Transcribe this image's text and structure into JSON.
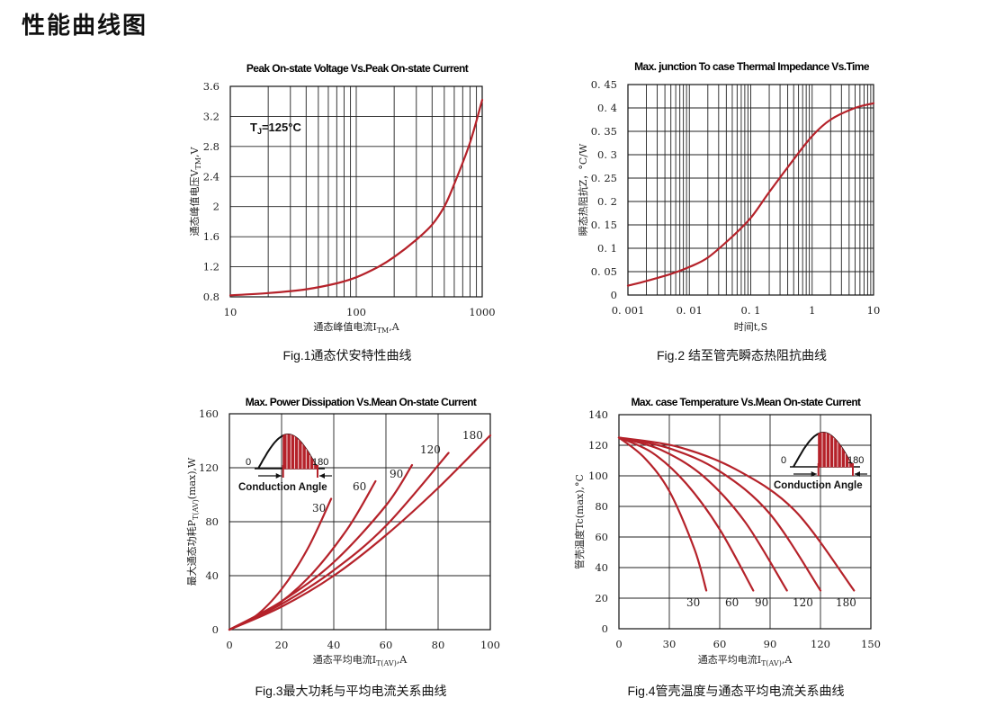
{
  "page": {
    "title": "性能曲线图"
  },
  "colors": {
    "curve": "#b5222a",
    "grid": "#222222",
    "background": "#ffffff"
  },
  "chart_data": [
    {
      "type": "line",
      "title": "Peak On-state Voltage Vs.Peak On-state Current",
      "xlabel": "通态峰值电流I",
      "xlabel_sub": "TM",
      "xlabel_unit": ",A",
      "ylabel": "通态峰值电压V",
      "ylabel_sub": "TM",
      "ylabel_unit": ",V",
      "x_scale": "log",
      "xlim": [
        10,
        1000
      ],
      "ylim": [
        0.8,
        3.6
      ],
      "x_ticks": [
        10,
        100,
        1000
      ],
      "x_tick_labels": [
        "10",
        "100",
        "1000"
      ],
      "y_ticks": [
        0.8,
        1.2,
        1.6,
        2,
        2.4,
        2.8,
        3.2,
        3.6
      ],
      "y_tick_labels": [
        "0.8",
        "1.2",
        "1.6",
        "2",
        "2.4",
        "2.8",
        "3.2",
        "3.6"
      ],
      "grid": true,
      "annotation": "TJ=125°C",
      "series": [
        {
          "x": [
            10,
            20,
            40,
            70,
            100,
            150,
            200,
            300,
            400,
            500,
            600,
            800,
            1000
          ],
          "y": [
            0.82,
            0.85,
            0.9,
            0.98,
            1.06,
            1.2,
            1.33,
            1.56,
            1.76,
            2.0,
            2.3,
            2.85,
            3.42
          ]
        }
      ],
      "caption": "Fig.1通态伏安特性曲线"
    },
    {
      "type": "line",
      "title": "Max. junction To case Thermal Impedance Vs.Time",
      "xlabel": "时间t,S",
      "ylabel": "瞬态热阻抗Z，°C/W",
      "x_scale": "log",
      "xlim": [
        0.001,
        10
      ],
      "ylim": [
        0,
        0.45
      ],
      "x_ticks": [
        0.001,
        0.01,
        0.1,
        1,
        10
      ],
      "x_tick_labels": [
        "0. 001",
        "0. 01",
        "0. 1",
        "1",
        "10"
      ],
      "y_ticks": [
        0,
        0.05,
        0.1,
        0.15,
        0.2,
        0.25,
        0.3,
        0.35,
        0.4,
        0.45
      ],
      "y_tick_labels": [
        "0",
        "0. 05",
        "0. 1",
        "0. 15",
        "0. 2",
        "0. 25",
        "0. 3",
        "0. 35",
        "0. 4",
        "0. 45"
      ],
      "grid": true,
      "series": [
        {
          "x": [
            0.001,
            0.002,
            0.005,
            0.01,
            0.02,
            0.05,
            0.1,
            0.2,
            0.5,
            1,
            2,
            5,
            10
          ],
          "y": [
            0.02,
            0.03,
            0.045,
            0.06,
            0.08,
            0.125,
            0.165,
            0.22,
            0.29,
            0.34,
            0.375,
            0.4,
            0.41
          ]
        }
      ],
      "caption": "Fig.2 结至管壳瞬态热阻抗曲线"
    },
    {
      "type": "line",
      "title": "Max. Power Dissipation Vs.Mean On-state Current",
      "xlabel": "通态平均电流I",
      "xlabel_sub": "T(AV)",
      "xlabel_unit": ",A",
      "ylabel": "最大通态功耗P",
      "ylabel_sub": "T(AV)",
      "ylabel_unit": "(max),W",
      "xlim": [
        0,
        100
      ],
      "ylim": [
        0,
        160
      ],
      "x_ticks": [
        0,
        20,
        40,
        60,
        80,
        100
      ],
      "x_tick_labels": [
        "0",
        "20",
        "40",
        "60",
        "80",
        "100"
      ],
      "y_ticks": [
        0,
        40,
        80,
        120,
        160
      ],
      "y_tick_labels": [
        "0",
        "40",
        "80",
        "120",
        "160"
      ],
      "grid": true,
      "inset": {
        "left": "0",
        "right": "180",
        "text": "Conduction Angle"
      },
      "series": [
        {
          "name": "30",
          "x": [
            0,
            10,
            20,
            30,
            39
          ],
          "y": [
            0,
            10,
            30,
            60,
            97
          ]
        },
        {
          "name": "60",
          "x": [
            0,
            15,
            30,
            45,
            56
          ],
          "y": [
            0,
            14,
            38,
            74,
            110
          ]
        },
        {
          "name": "90",
          "x": [
            0,
            20,
            40,
            60,
            70
          ],
          "y": [
            0,
            21,
            50,
            92,
            122
          ]
        },
        {
          "name": "120",
          "x": [
            0,
            20,
            40,
            60,
            84
          ],
          "y": [
            0,
            19,
            44,
            77,
            131
          ]
        },
        {
          "name": "180",
          "x": [
            0,
            20,
            40,
            60,
            80,
            100
          ],
          "y": [
            0,
            17,
            40,
            70,
            105,
            144
          ]
        }
      ],
      "caption": "Fig.3最大功耗与平均电流关系曲线"
    },
    {
      "type": "line",
      "title": "Max. case Temperature Vs.Mean On-state Current",
      "xlabel": "通态平均电流I",
      "xlabel_sub": "T(AV)",
      "xlabel_unit": ",A",
      "ylabel": "管壳温度Tc(max),°C",
      "xlim": [
        0,
        150
      ],
      "ylim": [
        0,
        140
      ],
      "x_ticks": [
        0,
        30,
        60,
        90,
        120,
        150
      ],
      "x_tick_labels": [
        "0",
        "30",
        "60",
        "90",
        "120",
        "150"
      ],
      "y_ticks": [
        0,
        20,
        40,
        60,
        80,
        100,
        120,
        140
      ],
      "y_tick_labels": [
        "0",
        "20",
        "40",
        "60",
        "80",
        "100",
        "120",
        "140"
      ],
      "grid": true,
      "inset": {
        "left": "0",
        "right": "180",
        "text": "Conduction Angle"
      },
      "series": [
        {
          "name": "30",
          "x": [
            0,
            15,
            30,
            45,
            52
          ],
          "y": [
            125,
            112,
            90,
            52,
            25
          ]
        },
        {
          "name": "60",
          "x": [
            0,
            20,
            40,
            60,
            80
          ],
          "y": [
            125,
            115,
            95,
            65,
            25
          ]
        },
        {
          "name": "90",
          "x": [
            0,
            25,
            50,
            75,
            100
          ],
          "y": [
            125,
            117,
            100,
            70,
            25
          ]
        },
        {
          "name": "120",
          "x": [
            0,
            30,
            60,
            90,
            120
          ],
          "y": [
            125,
            118,
            103,
            75,
            25
          ]
        },
        {
          "name": "180",
          "x": [
            0,
            35,
            70,
            105,
            140
          ],
          "y": [
            125,
            119,
            104,
            77,
            25
          ]
        }
      ],
      "caption": "Fig.4管壳温度与通态平均电流关系曲线"
    }
  ]
}
